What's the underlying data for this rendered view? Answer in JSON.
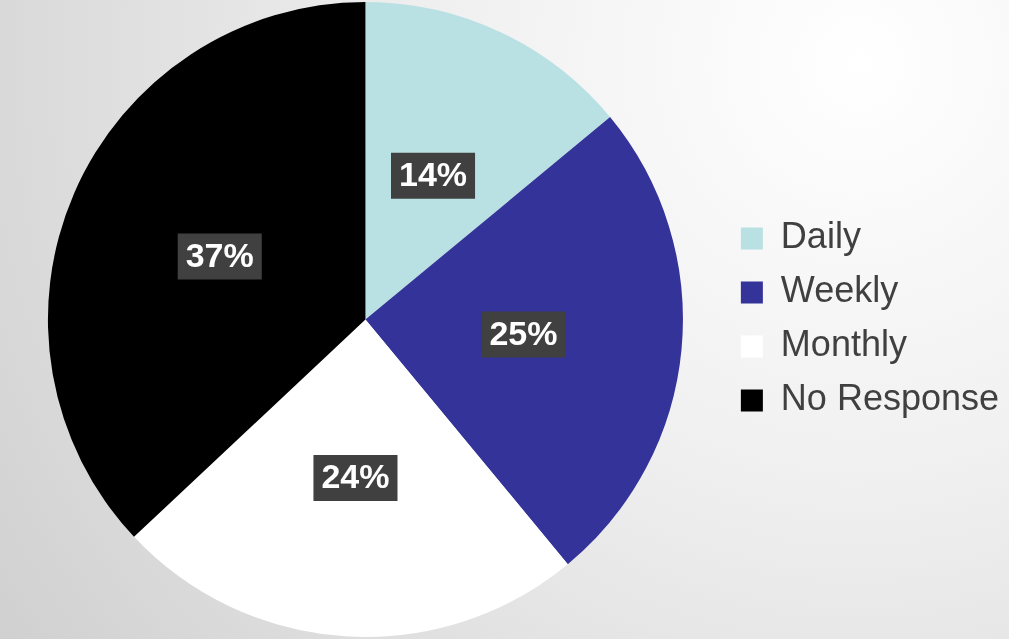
{
  "chart_data": {
    "type": "pie",
    "categories": [
      "Daily",
      "Weekly",
      "Monthly",
      "No Response"
    ],
    "values": [
      14,
      25,
      24,
      37
    ],
    "value_labels": [
      "14%",
      "25%",
      "24%",
      "37%"
    ],
    "colors": [
      "#b9e0e3",
      "#333399",
      "#ffffff",
      "#000000"
    ],
    "legend": "right"
  }
}
